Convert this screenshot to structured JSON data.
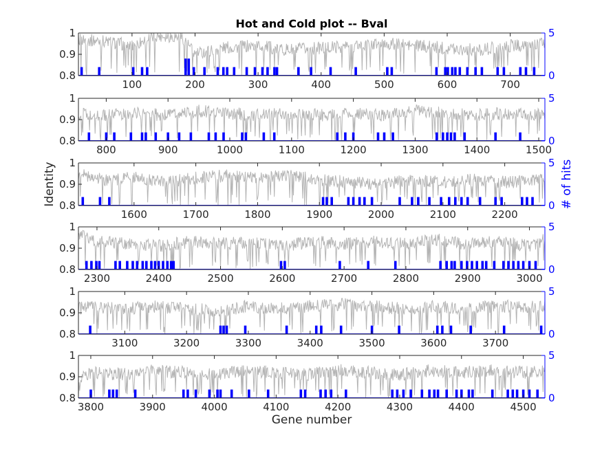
{
  "chart_data": {
    "type": "line",
    "title": "Hot and Cold plot -- Bval",
    "xlabel": "Gene number",
    "ylabel": "Identity",
    "ylabel_right": "# of hits",
    "colors": {
      "identity": "#b4b4b4",
      "hits": "#0000ff",
      "axes": "#262626"
    },
    "left_ylim": [
      0.8,
      1.0
    ],
    "left_yticks": [
      "0.8",
      "0.9",
      "1"
    ],
    "right_ylim": [
      0,
      5
    ],
    "right_yticks": [
      "0",
      "5"
    ],
    "grid": false,
    "panels": [
      {
        "xlim": [
          15,
          755
        ],
        "xticks": [
          100,
          200,
          300,
          400,
          500,
          600,
          700
        ],
        "identity_segments": [
          [
            15,
            0.97
          ],
          [
            60,
            0.96
          ],
          [
            100,
            0.94
          ],
          [
            140,
            0.99
          ],
          [
            180,
            0.98
          ],
          [
            200,
            0.9
          ],
          [
            240,
            0.93
          ],
          [
            300,
            0.94
          ],
          [
            350,
            0.92
          ],
          [
            400,
            0.93
          ],
          [
            450,
            0.94
          ],
          [
            500,
            0.95
          ],
          [
            550,
            0.94
          ],
          [
            600,
            0.93
          ],
          [
            650,
            0.92
          ],
          [
            700,
            0.94
          ],
          [
            755,
            0.95
          ]
        ],
        "hits": [
          [
            20,
            1
          ],
          [
            48,
            1
          ],
          [
            102,
            1
          ],
          [
            116,
            1
          ],
          [
            124,
            1
          ],
          [
            185,
            2
          ],
          [
            190,
            2
          ],
          [
            198,
            1
          ],
          [
            215,
            1
          ],
          [
            236,
            1
          ],
          [
            245,
            1
          ],
          [
            251,
            1
          ],
          [
            262,
            1
          ],
          [
            282,
            1
          ],
          [
            295,
            1
          ],
          [
            307,
            1
          ],
          [
            315,
            1
          ],
          [
            326,
            1
          ],
          [
            330,
            1
          ],
          [
            364,
            1
          ],
          [
            384,
            1
          ],
          [
            415,
            1
          ],
          [
            455,
            1
          ],
          [
            505,
            1
          ],
          [
            512,
            1
          ],
          [
            583,
            1
          ],
          [
            597,
            1
          ],
          [
            601,
            1
          ],
          [
            608,
            1
          ],
          [
            613,
            1
          ],
          [
            620,
            1
          ],
          [
            632,
            1
          ],
          [
            645,
            1
          ],
          [
            655,
            1
          ],
          [
            680,
            1
          ],
          [
            690,
            1
          ],
          [
            716,
            1
          ],
          [
            725,
            1
          ],
          [
            738,
            1
          ]
        ]
      },
      {
        "xlim": [
          755,
          1510
        ],
        "xticks": [
          800,
          900,
          1000,
          1100,
          1200,
          1300,
          1400,
          1500
        ],
        "identity_segments": [
          [
            755,
            0.93
          ],
          [
            800,
            0.92
          ],
          [
            850,
            0.93
          ],
          [
            900,
            0.92
          ],
          [
            950,
            0.94
          ],
          [
            1000,
            0.93
          ],
          [
            1050,
            0.92
          ],
          [
            1100,
            0.93
          ],
          [
            1150,
            0.92
          ],
          [
            1200,
            0.93
          ],
          [
            1250,
            0.92
          ],
          [
            1300,
            0.94
          ],
          [
            1350,
            0.93
          ],
          [
            1400,
            0.92
          ],
          [
            1450,
            0.93
          ],
          [
            1510,
            0.92
          ]
        ],
        "hits": [
          [
            772,
            1
          ],
          [
            800,
            1
          ],
          [
            813,
            1
          ],
          [
            840,
            1
          ],
          [
            858,
            1
          ],
          [
            864,
            1
          ],
          [
            880,
            1
          ],
          [
            900,
            1
          ],
          [
            918,
            1
          ],
          [
            937,
            1
          ],
          [
            966,
            1
          ],
          [
            977,
            1
          ],
          [
            990,
            1
          ],
          [
            1020,
            1
          ],
          [
            1026,
            1
          ],
          [
            1055,
            1
          ],
          [
            1072,
            1
          ],
          [
            1174,
            1
          ],
          [
            1187,
            1
          ],
          [
            1200,
            1
          ],
          [
            1240,
            1
          ],
          [
            1250,
            1
          ],
          [
            1264,
            1
          ],
          [
            1335,
            1
          ],
          [
            1345,
            1
          ],
          [
            1352,
            1
          ],
          [
            1358,
            1
          ],
          [
            1364,
            1
          ],
          [
            1380,
            1
          ],
          [
            1430,
            1
          ],
          [
            1470,
            1
          ]
        ]
      },
      {
        "xlim": [
          1510,
          2265
        ],
        "xticks": [
          1600,
          1700,
          1800,
          1900,
          2000,
          2100,
          2200
        ],
        "identity_segments": [
          [
            1510,
            0.95
          ],
          [
            1550,
            0.92
          ],
          [
            1600,
            0.93
          ],
          [
            1650,
            0.91
          ],
          [
            1700,
            0.93
          ],
          [
            1750,
            0.94
          ],
          [
            1800,
            0.93
          ],
          [
            1850,
            0.94
          ],
          [
            1900,
            0.92
          ],
          [
            1950,
            0.91
          ],
          [
            2000,
            0.9
          ],
          [
            2050,
            0.92
          ],
          [
            2100,
            0.91
          ],
          [
            2150,
            0.92
          ],
          [
            2200,
            0.91
          ],
          [
            2265,
            0.92
          ]
        ],
        "hits": [
          [
            1517,
            1
          ],
          [
            1545,
            1
          ],
          [
            1560,
            1
          ],
          [
            1906,
            1
          ],
          [
            1912,
            1
          ],
          [
            1920,
            1
          ],
          [
            1947,
            1
          ],
          [
            1955,
            1
          ],
          [
            1965,
            1
          ],
          [
            1973,
            1
          ],
          [
            1985,
            1
          ],
          [
            2030,
            1
          ],
          [
            2050,
            1
          ],
          [
            2060,
            1
          ],
          [
            2078,
            1
          ],
          [
            2097,
            1
          ],
          [
            2110,
            1
          ],
          [
            2120,
            1
          ],
          [
            2130,
            1
          ],
          [
            2140,
            1
          ],
          [
            2160,
            1
          ],
          [
            2185,
            1
          ],
          [
            2195,
            1
          ],
          [
            2228,
            1
          ],
          [
            2236,
            1
          ],
          [
            2245,
            1
          ]
        ]
      },
      {
        "xlim": [
          2270,
          3025
        ],
        "xticks": [
          2300,
          2400,
          2500,
          2600,
          2700,
          2800,
          2900,
          3000
        ],
        "identity_segments": [
          [
            2270,
            0.96
          ],
          [
            2300,
            0.93
          ],
          [
            2350,
            0.92
          ],
          [
            2400,
            0.91
          ],
          [
            2450,
            0.93
          ],
          [
            2500,
            0.92
          ],
          [
            2550,
            0.93
          ],
          [
            2600,
            0.91
          ],
          [
            2650,
            0.93
          ],
          [
            2700,
            0.92
          ],
          [
            2750,
            0.93
          ],
          [
            2800,
            0.92
          ],
          [
            2850,
            0.94
          ],
          [
            2900,
            0.92
          ],
          [
            2950,
            0.93
          ],
          [
            3000,
            0.91
          ],
          [
            3025,
            0.94
          ]
        ],
        "hits": [
          [
            2283,
            1
          ],
          [
            2291,
            1
          ],
          [
            2299,
            1
          ],
          [
            2304,
            1
          ],
          [
            2330,
            1
          ],
          [
            2337,
            1
          ],
          [
            2349,
            1
          ],
          [
            2358,
            1
          ],
          [
            2365,
            1
          ],
          [
            2374,
            1
          ],
          [
            2380,
            1
          ],
          [
            2388,
            1
          ],
          [
            2394,
            1
          ],
          [
            2400,
            1
          ],
          [
            2407,
            1
          ],
          [
            2414,
            1
          ],
          [
            2420,
            1
          ],
          [
            2424,
            1
          ],
          [
            2598,
            1
          ],
          [
            2604,
            1
          ],
          [
            2693,
            1
          ],
          [
            2739,
            1
          ],
          [
            2783,
            1
          ],
          [
            2856,
            1
          ],
          [
            2866,
            1
          ],
          [
            2874,
            1
          ],
          [
            2879,
            1
          ],
          [
            2890,
            1
          ],
          [
            2899,
            1
          ],
          [
            2907,
            1
          ],
          [
            2915,
            1
          ],
          [
            2924,
            1
          ],
          [
            2930,
            1
          ],
          [
            2943,
            1
          ],
          [
            2958,
            1
          ],
          [
            2966,
            1
          ],
          [
            2974,
            1
          ],
          [
            2982,
            1
          ],
          [
            2990,
            1
          ],
          [
            3000,
            1
          ],
          [
            3010,
            1
          ]
        ]
      },
      {
        "xlim": [
          3025,
          3780
        ],
        "xticks": [
          3100,
          3200,
          3300,
          3400,
          3500,
          3600,
          3700
        ],
        "identity_segments": [
          [
            3025,
            0.92
          ],
          [
            3050,
            0.93
          ],
          [
            3100,
            0.92
          ],
          [
            3150,
            0.93
          ],
          [
            3200,
            0.92
          ],
          [
            3250,
            0.91
          ],
          [
            3300,
            0.93
          ],
          [
            3350,
            0.92
          ],
          [
            3400,
            0.93
          ],
          [
            3450,
            0.94
          ],
          [
            3500,
            0.93
          ],
          [
            3550,
            0.92
          ],
          [
            3600,
            0.93
          ],
          [
            3650,
            0.92
          ],
          [
            3700,
            0.93
          ],
          [
            3780,
            0.93
          ]
        ],
        "hits": [
          [
            3044,
            1
          ],
          [
            3255,
            1
          ],
          [
            3260,
            1
          ],
          [
            3265,
            1
          ],
          [
            3295,
            1
          ],
          [
            3362,
            1
          ],
          [
            3410,
            1
          ],
          [
            3418,
            1
          ],
          [
            3450,
            1
          ],
          [
            3500,
            1
          ],
          [
            3544,
            1
          ],
          [
            3606,
            1
          ],
          [
            3614,
            1
          ],
          [
            3628,
            1
          ],
          [
            3660,
            1
          ],
          [
            3714,
            1
          ],
          [
            3774,
            1
          ]
        ]
      },
      {
        "xlim": [
          3780,
          4535
        ],
        "xticks": [
          3800,
          3900,
          4000,
          4100,
          4200,
          4300,
          4400,
          4500
        ],
        "identity_segments": [
          [
            3780,
            0.88
          ],
          [
            3800,
            0.92
          ],
          [
            3850,
            0.91
          ],
          [
            3900,
            0.93
          ],
          [
            3950,
            0.92
          ],
          [
            4000,
            0.91
          ],
          [
            4050,
            0.93
          ],
          [
            4100,
            0.92
          ],
          [
            4150,
            0.91
          ],
          [
            4200,
            0.93
          ],
          [
            4250,
            0.92
          ],
          [
            4300,
            0.91
          ],
          [
            4350,
            0.93
          ],
          [
            4400,
            0.92
          ],
          [
            4450,
            0.93
          ],
          [
            4500,
            0.92
          ],
          [
            4535,
            0.93
          ]
        ],
        "hits": [
          [
            3800,
            1
          ],
          [
            3830,
            1
          ],
          [
            3836,
            1
          ],
          [
            3842,
            1
          ],
          [
            3872,
            1
          ],
          [
            3950,
            1
          ],
          [
            3957,
            1
          ],
          [
            3970,
            1
          ],
          [
            3992,
            1
          ],
          [
            4005,
            1
          ],
          [
            4010,
            1
          ],
          [
            4028,
            1
          ],
          [
            4056,
            1
          ],
          [
            4087,
            1
          ],
          [
            4140,
            1
          ],
          [
            4147,
            1
          ],
          [
            4172,
            1
          ],
          [
            4180,
            1
          ],
          [
            4189,
            1
          ],
          [
            4213,
            1
          ],
          [
            4288,
            1
          ],
          [
            4296,
            1
          ],
          [
            4306,
            1
          ],
          [
            4318,
            1
          ],
          [
            4336,
            1
          ],
          [
            4348,
            1
          ],
          [
            4356,
            1
          ],
          [
            4362,
            1
          ],
          [
            4376,
            1
          ],
          [
            4392,
            1
          ],
          [
            4400,
            1
          ],
          [
            4412,
            1
          ],
          [
            4418,
            1
          ],
          [
            4450,
            1
          ],
          [
            4475,
            1
          ],
          [
            4483,
            1
          ],
          [
            4490,
            1
          ],
          [
            4500,
            1
          ],
          [
            4510,
            1
          ],
          [
            4523,
            1
          ]
        ]
      }
    ]
  }
}
